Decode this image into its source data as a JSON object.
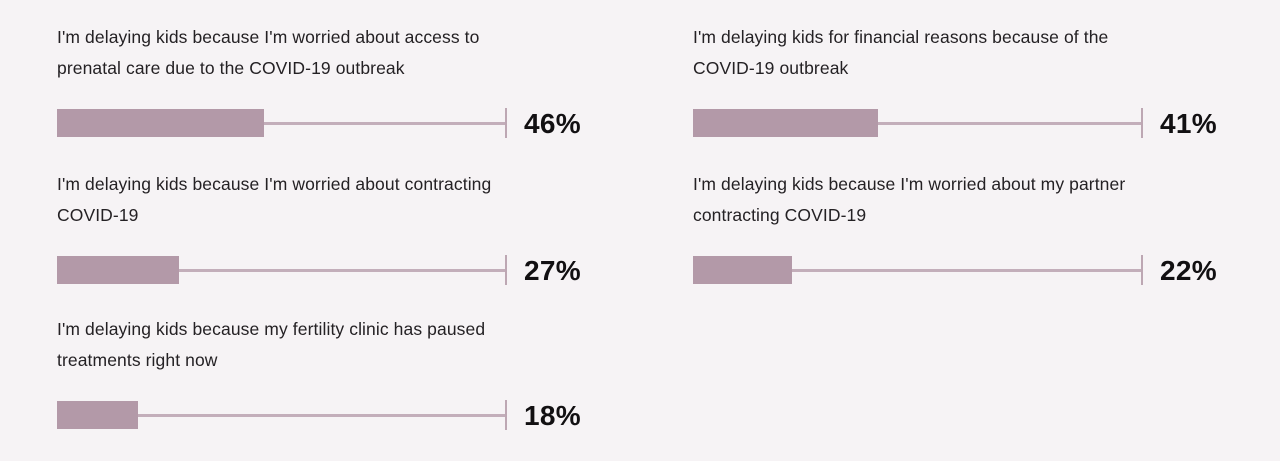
{
  "chart_data": {
    "type": "bar",
    "orientation": "horizontal",
    "unit": "%",
    "axis_max": 100,
    "grid": false,
    "legend": false,
    "colors": {
      "background": "#f6f3f5",
      "bar_fill": "#b399a8",
      "rule_line": "#c3aeba",
      "tick": "#bda7b3",
      "label_text": "#242124",
      "value_text": "#121012"
    },
    "items": [
      {
        "label": "I'm delaying kids because I'm worried about access to\nprenatal care due to the COVID-19 outbreak",
        "value": 46,
        "value_label": "46%",
        "column": "left"
      },
      {
        "label": "I'm delaying kids because I'm worried about contracting\nCOVID-19",
        "value": 27,
        "value_label": "27%",
        "column": "left"
      },
      {
        "label": "I'm delaying kids because my fertility clinic has paused\ntreatments right now",
        "value": 18,
        "value_label": "18%",
        "column": "left"
      },
      {
        "label": "I'm delaying kids for financial reasons because of the\nCOVID-19 outbreak",
        "value": 41,
        "value_label": "41%",
        "column": "right"
      },
      {
        "label": "I'm delaying kids because I'm worried about my partner\ncontracting COVID-19",
        "value": 22,
        "value_label": "22%",
        "column": "right"
      }
    ]
  }
}
